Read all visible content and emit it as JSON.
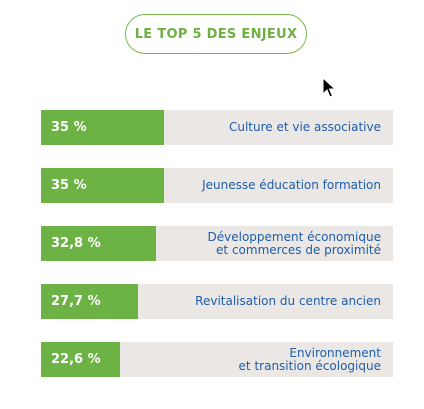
{
  "title": "LE TOP 5 DES ENJEUX",
  "colors": {
    "accent": "#6db244",
    "track": "#ebe7e5",
    "label": "#1f5ea8"
  },
  "chart_data": {
    "type": "bar",
    "orientation": "horizontal",
    "xlim": [
      0,
      100
    ],
    "categories": [
      "Culture et vie associative",
      "Jeunesse éducation formation",
      "Développement économique\net commerces de proximité",
      "Revitalisation du centre ancien",
      "Environnement\net transition écologique"
    ],
    "values": [
      35,
      35,
      32.8,
      27.7,
      22.6
    ],
    "value_labels": [
      "35 %",
      "35 %",
      "32,8 %",
      "27,7 %",
      "22,6 %"
    ]
  }
}
